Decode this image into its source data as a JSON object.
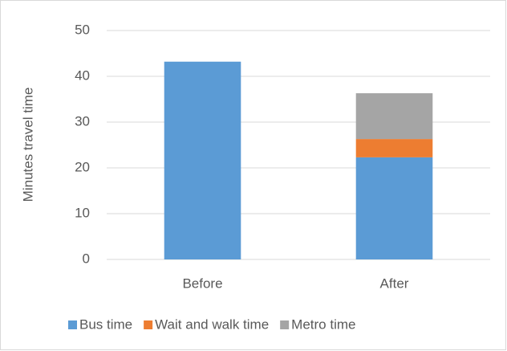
{
  "chart_data": {
    "type": "stacked_bar",
    "categories": [
      "Before",
      "After"
    ],
    "series": [
      {
        "name": "Bus time",
        "color": "#5b9bd5",
        "values": [
          43.2,
          22.3
        ]
      },
      {
        "name": "Wait and walk time",
        "color": "#ed7d31",
        "values": [
          null,
          4
        ]
      },
      {
        "name": "Metro time",
        "color": "#a5a5a5",
        "values": [
          null,
          10
        ]
      }
    ],
    "ylabel": "Minutes travel time",
    "ylim": [
      0,
      50
    ],
    "yticks": [
      0,
      10,
      20,
      30,
      40,
      50
    ],
    "grid": true,
    "legend": "bottom"
  }
}
